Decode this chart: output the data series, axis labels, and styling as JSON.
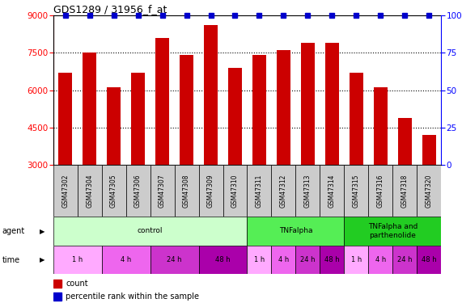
{
  "title": "GDS1289 / 31956_f_at",
  "samples": [
    "GSM47302",
    "GSM47304",
    "GSM47305",
    "GSM47306",
    "GSM47307",
    "GSM47308",
    "GSM47309",
    "GSM47310",
    "GSM47311",
    "GSM47312",
    "GSM47313",
    "GSM47314",
    "GSM47315",
    "GSM47316",
    "GSM47318",
    "GSM47320"
  ],
  "bar_values": [
    6700,
    7500,
    6100,
    6700,
    8100,
    7400,
    8600,
    6900,
    7400,
    7600,
    7900,
    7900,
    6700,
    6100,
    4900,
    4200
  ],
  "bar_color": "#cc0000",
  "percentile_color": "#0000cc",
  "ylim_left": [
    3000,
    9000
  ],
  "ylim_right": [
    0,
    100
  ],
  "yticks_left": [
    3000,
    4500,
    6000,
    7500,
    9000
  ],
  "yticks_right": [
    0,
    25,
    50,
    75,
    100
  ],
  "grid_values": [
    4500,
    6000,
    7500
  ],
  "agent_groups": [
    {
      "label": "control",
      "start": 0,
      "end": 8,
      "color": "#ccffcc"
    },
    {
      "label": "TNFalpha",
      "start": 8,
      "end": 12,
      "color": "#55ee55"
    },
    {
      "label": "TNFalpha and\nparthenolide",
      "start": 12,
      "end": 16,
      "color": "#22cc22"
    }
  ],
  "time_labels": [
    "1 h",
    "4 h",
    "24 h",
    "48 h",
    "1 h",
    "4 h",
    "24 h",
    "48 h",
    "1 h",
    "4 h",
    "24 h",
    "48 h"
  ],
  "time_starts": [
    0,
    2,
    4,
    6,
    8,
    9,
    10,
    11,
    12,
    13,
    14,
    15
  ],
  "time_ends": [
    2,
    4,
    6,
    8,
    9,
    10,
    11,
    12,
    13,
    14,
    15,
    16
  ],
  "time_colors": [
    "#ffaaff",
    "#ee66ee",
    "#cc33cc",
    "#aa00aa",
    "#ffaaff",
    "#ee66ee",
    "#cc33cc",
    "#aa00aa",
    "#ffaaff",
    "#ee66ee",
    "#cc33cc",
    "#aa00aa"
  ],
  "background_color": "#ffffff",
  "sample_bg_color": "#cccccc"
}
